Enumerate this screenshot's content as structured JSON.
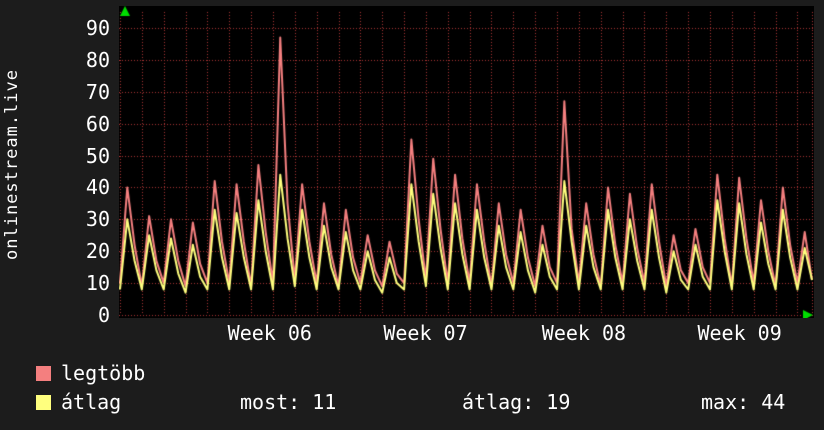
{
  "side_label": "onlinestream.live",
  "legend": {
    "items": [
      {
        "label": "legtöbb",
        "color": "#f47f7f"
      },
      {
        "label": "átlag",
        "color": "#ffff7e"
      }
    ]
  },
  "stats": [
    {
      "text": "most: 11"
    },
    {
      "text": "átlag: 19"
    },
    {
      "text": "max: 44"
    }
  ],
  "chart_data": {
    "type": "line",
    "title": "",
    "ylabel": "onlinestream.live",
    "xlabel": "",
    "ylim": [
      0,
      95
    ],
    "yticks": [
      0,
      10,
      20,
      30,
      40,
      50,
      60,
      70,
      80,
      90
    ],
    "xtick_labels": [
      "Week 06",
      "Week 07",
      "Week 08",
      "Week 09"
    ],
    "xtick_positions": [
      0.217,
      0.441,
      0.669,
      0.893
    ],
    "grid": {
      "on": true,
      "color": "#aa3333",
      "vertical_every_samples": 3
    },
    "axis_arrow_color": "#00dd00",
    "plot_background": "#000000",
    "legend_position": "bottom-left",
    "series": [
      {
        "name": "legtöbb",
        "color": "#f47f7f",
        "values": [
          10,
          40,
          22,
          9,
          31,
          17,
          10,
          30,
          17,
          9,
          29,
          16,
          10,
          42,
          23,
          10,
          41,
          23,
          9,
          47,
          26,
          10,
          87,
          35,
          11,
          41,
          23,
          10,
          35,
          19,
          9,
          33,
          18,
          10,
          25,
          14,
          9,
          23,
          13,
          10,
          55,
          30,
          11,
          49,
          27,
          10,
          44,
          24,
          10,
          41,
          23,
          9,
          35,
          19,
          10,
          33,
          18,
          9,
          28,
          15,
          10,
          67,
          27,
          10,
          35,
          19,
          9,
          40,
          22,
          10,
          38,
          21,
          10,
          41,
          23,
          9,
          25,
          14,
          10,
          27,
          15,
          10,
          44,
          24,
          9,
          43,
          24,
          10,
          36,
          20,
          9,
          40,
          22,
          10,
          26,
          11
        ]
      },
      {
        "name": "átlag",
        "color": "#ffff7e",
        "values": [
          8,
          30,
          17,
          8,
          25,
          14,
          8,
          24,
          13,
          7,
          22,
          12,
          8,
          33,
          18,
          8,
          32,
          18,
          8,
          36,
          20,
          8,
          44,
          24,
          9,
          33,
          18,
          8,
          28,
          15,
          8,
          26,
          14,
          8,
          20,
          11,
          7,
          18,
          10,
          8,
          41,
          23,
          9,
          38,
          21,
          8,
          35,
          19,
          8,
          33,
          18,
          8,
          28,
          15,
          8,
          26,
          14,
          7,
          22,
          12,
          8,
          42,
          23,
          8,
          28,
          15,
          8,
          33,
          18,
          8,
          30,
          17,
          8,
          33,
          18,
          7,
          20,
          11,
          8,
          22,
          12,
          8,
          36,
          20,
          8,
          35,
          19,
          8,
          29,
          16,
          8,
          33,
          18,
          8,
          21,
          11
        ]
      }
    ]
  }
}
